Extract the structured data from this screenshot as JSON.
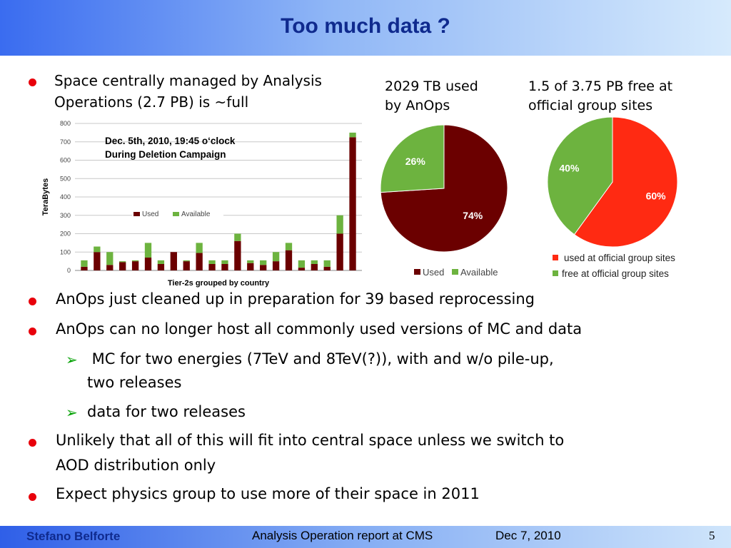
{
  "slide": {
    "title": "Too much data ?",
    "bullets": [
      "Space centrally managed by Analysis Operations (2.7 PB) is ~full",
      "AnOps just cleaned up in preparation for 39 based reprocessing",
      "AnOps can no longer host all commonly used versions of MC and data",
      "Unlikely that all of this will fit into central space unless we switch to AOD distribution only",
      "Expect physics group to use more of their space in 2011"
    ],
    "bullet1_lines": [
      "Space centrally managed by Analysis",
      "Operations (2.7 PB) is ~full"
    ],
    "bullet4_lines": [
      "Unlikely that all of this will fit into central space unless we switch to",
      "AOD distribution only"
    ],
    "sub_bullets": [
      " MC for two energies (7TeV and 8TeV(?)), with and w/o pile-up, two releases",
      "data for two releases"
    ],
    "sub1_lines": [
      " MC for two energies (7TeV and 8TeV(?)), with and w/o pile-up,",
      "two releases"
    ],
    "colors": {
      "title": "#0f2a8e",
      "bullet": "#e8000b",
      "arrow": "#00a000",
      "used_dark": "#6b0000",
      "available_green": "#6db33f",
      "used_red": "#ff2a12"
    }
  },
  "footer": {
    "author": "Stefano Belforte",
    "center": "Analysis Operation report at CMS",
    "date": "Dec 7, 2010",
    "page": "5"
  },
  "chart_data": [
    {
      "type": "bar",
      "stacked": true,
      "annotation": [
        "Dec. 5th, 2010, 19:45 o‘clock",
        "During Deletion Campaign"
      ],
      "xlabel": "Tier-2s grouped by country",
      "ylabel": "TeraBytes",
      "ylim": [
        0,
        800
      ],
      "yticks": [
        0,
        100,
        200,
        300,
        400,
        500,
        600,
        700,
        800
      ],
      "grid": true,
      "legend_position": "center",
      "series": [
        {
          "name": "Used",
          "color": "#6b0000",
          "values": [
            20,
            100,
            30,
            45,
            50,
            70,
            35,
            100,
            50,
            95,
            35,
            35,
            160,
            40,
            30,
            50,
            110,
            15,
            35,
            20,
            200,
            725
          ]
        },
        {
          "name": "Available",
          "color": "#6db33f",
          "values": [
            35,
            30,
            70,
            5,
            5,
            80,
            20,
            0,
            5,
            55,
            20,
            20,
            40,
            15,
            25,
            50,
            40,
            40,
            20,
            35,
            100,
            25
          ]
        }
      ]
    },
    {
      "type": "pie",
      "caption_lines": [
        "2029 TB used",
        "by AnOps"
      ],
      "labels": [
        "Used",
        "Available"
      ],
      "values": [
        74,
        26
      ],
      "value_labels": [
        "74%",
        "26%"
      ],
      "colors": [
        "#6b0000",
        "#6db33f"
      ],
      "legend_position": "bottom"
    },
    {
      "type": "pie",
      "caption_lines": [
        "1.5 of 3.75 PB free at",
        "official group sites"
      ],
      "labels": [
        "used at official group sites",
        "free at official group sites"
      ],
      "values": [
        60,
        40
      ],
      "value_labels": [
        "60%",
        "40%"
      ],
      "colors": [
        "#ff2a12",
        "#6db33f"
      ],
      "legend_position": "bottom"
    }
  ]
}
